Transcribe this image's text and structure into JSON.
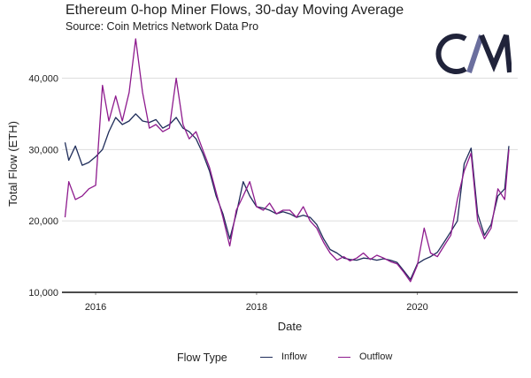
{
  "header": {
    "title": "Ethereum 0-hop Miner Flows, 30-day Moving Average",
    "subtitle": "Source: Coin Metrics Network Data Pro"
  },
  "logo": {
    "text": "CM",
    "color": "#20233a",
    "accent": "#6b6f9e"
  },
  "legend": {
    "title": "Flow Type",
    "items": [
      "Inflow",
      "Outflow"
    ]
  },
  "colors": {
    "inflow": "#1f2d5a",
    "outflow": "#8e1b8e",
    "grid": "#dddddd",
    "axis": "#111111"
  },
  "chart_data": {
    "type": "line",
    "xlabel": "Date",
    "ylabel": "Total Flow (ETH)",
    "xticks": [
      "2016",
      "2018",
      "2020"
    ],
    "yticks": [
      "10,000",
      "20,000",
      "30,000",
      "40,000"
    ],
    "xlim": [
      "2015-08-01",
      "2021-04-01"
    ],
    "ylim": [
      10000,
      46000
    ],
    "grid": true,
    "legend_position": "bottom",
    "series": [
      {
        "name": "Inflow",
        "color": "#1f2d5a",
        "points": [
          [
            "2015-08-15",
            31000
          ],
          [
            "2015-09-01",
            28500
          ],
          [
            "2015-10-01",
            30500
          ],
          [
            "2015-11-01",
            27800
          ],
          [
            "2015-12-01",
            28200
          ],
          [
            "2016-01-01",
            29000
          ],
          [
            "2016-02-01",
            30000
          ],
          [
            "2016-03-01",
            32500
          ],
          [
            "2016-04-01",
            34500
          ],
          [
            "2016-05-01",
            33500
          ],
          [
            "2016-06-01",
            34000
          ],
          [
            "2016-07-01",
            35000
          ],
          [
            "2016-08-01",
            34000
          ],
          [
            "2016-09-01",
            33800
          ],
          [
            "2016-10-01",
            34200
          ],
          [
            "2016-11-01",
            33000
          ],
          [
            "2016-12-01",
            33500
          ],
          [
            "2017-01-01",
            34500
          ],
          [
            "2017-02-01",
            33000
          ],
          [
            "2017-03-01",
            32500
          ],
          [
            "2017-04-01",
            31500
          ],
          [
            "2017-05-01",
            29500
          ],
          [
            "2017-06-01",
            27000
          ],
          [
            "2017-07-01",
            23500
          ],
          [
            "2017-08-01",
            21000
          ],
          [
            "2017-09-01",
            17500
          ],
          [
            "2017-10-01",
            21000
          ],
          [
            "2017-11-01",
            25500
          ],
          [
            "2017-12-01",
            23500
          ],
          [
            "2018-01-01",
            22000
          ],
          [
            "2018-02-01",
            21800
          ],
          [
            "2018-03-01",
            21500
          ],
          [
            "2018-04-01",
            21000
          ],
          [
            "2018-05-01",
            21300
          ],
          [
            "2018-06-01",
            21000
          ],
          [
            "2018-07-01",
            20500
          ],
          [
            "2018-08-01",
            20800
          ],
          [
            "2018-09-01",
            20500
          ],
          [
            "2018-10-01",
            19500
          ],
          [
            "2018-11-01",
            17500
          ],
          [
            "2018-12-01",
            16000
          ],
          [
            "2019-01-01",
            15500
          ],
          [
            "2019-02-01",
            14800
          ],
          [
            "2019-03-01",
            14600
          ],
          [
            "2019-04-01",
            14500
          ],
          [
            "2019-05-01",
            14800
          ],
          [
            "2019-06-01",
            14700
          ],
          [
            "2019-07-01",
            14500
          ],
          [
            "2019-08-01",
            14700
          ],
          [
            "2019-09-01",
            14500
          ],
          [
            "2019-10-01",
            14200
          ],
          [
            "2019-11-01",
            13000
          ],
          [
            "2019-12-01",
            11800
          ],
          [
            "2020-01-01",
            14000
          ],
          [
            "2020-02-01",
            14600
          ],
          [
            "2020-03-01",
            15000
          ],
          [
            "2020-04-01",
            15600
          ],
          [
            "2020-05-01",
            17000
          ],
          [
            "2020-06-01",
            18500
          ],
          [
            "2020-07-01",
            20000
          ],
          [
            "2020-08-01",
            28000
          ],
          [
            "2020-09-01",
            30200
          ],
          [
            "2020-10-01",
            21000
          ],
          [
            "2020-11-01",
            18000
          ],
          [
            "2020-12-01",
            19500
          ],
          [
            "2021-01-01",
            23500
          ],
          [
            "2021-02-01",
            24500
          ],
          [
            "2021-02-20",
            30500
          ]
        ]
      },
      {
        "name": "Outflow",
        "color": "#8e1b8e",
        "points": [
          [
            "2015-08-15",
            20500
          ],
          [
            "2015-09-01",
            25500
          ],
          [
            "2015-10-01",
            23000
          ],
          [
            "2015-11-01",
            23500
          ],
          [
            "2015-12-01",
            24500
          ],
          [
            "2016-01-01",
            25000
          ],
          [
            "2016-02-01",
            39000
          ],
          [
            "2016-03-01",
            34000
          ],
          [
            "2016-04-01",
            37500
          ],
          [
            "2016-05-01",
            34000
          ],
          [
            "2016-06-01",
            38000
          ],
          [
            "2016-07-01",
            45500
          ],
          [
            "2016-08-01",
            38000
          ],
          [
            "2016-09-01",
            33000
          ],
          [
            "2016-10-01",
            33500
          ],
          [
            "2016-11-01",
            32500
          ],
          [
            "2016-12-01",
            33000
          ],
          [
            "2017-01-01",
            40000
          ],
          [
            "2017-02-01",
            33500
          ],
          [
            "2017-03-01",
            31500
          ],
          [
            "2017-04-01",
            32500
          ],
          [
            "2017-05-01",
            30000
          ],
          [
            "2017-06-01",
            27500
          ],
          [
            "2017-07-01",
            24000
          ],
          [
            "2017-08-01",
            20500
          ],
          [
            "2017-09-01",
            16500
          ],
          [
            "2017-10-01",
            21500
          ],
          [
            "2017-11-01",
            23500
          ],
          [
            "2017-12-01",
            25500
          ],
          [
            "2018-01-01",
            22000
          ],
          [
            "2018-02-01",
            21500
          ],
          [
            "2018-03-01",
            22500
          ],
          [
            "2018-04-01",
            21000
          ],
          [
            "2018-05-01",
            21500
          ],
          [
            "2018-06-01",
            21500
          ],
          [
            "2018-07-01",
            20500
          ],
          [
            "2018-08-01",
            22000
          ],
          [
            "2018-09-01",
            20000
          ],
          [
            "2018-10-01",
            19000
          ],
          [
            "2018-11-01",
            17000
          ],
          [
            "2018-12-01",
            15500
          ],
          [
            "2019-01-01",
            14500
          ],
          [
            "2019-02-01",
            15000
          ],
          [
            "2019-03-01",
            14400
          ],
          [
            "2019-04-01",
            14800
          ],
          [
            "2019-05-01",
            15500
          ],
          [
            "2019-06-01",
            14600
          ],
          [
            "2019-07-01",
            15200
          ],
          [
            "2019-08-01",
            14800
          ],
          [
            "2019-09-01",
            14300
          ],
          [
            "2019-10-01",
            14000
          ],
          [
            "2019-11-01",
            12800
          ],
          [
            "2019-12-01",
            11500
          ],
          [
            "2020-01-01",
            13800
          ],
          [
            "2020-02-01",
            19000
          ],
          [
            "2020-03-01",
            15500
          ],
          [
            "2020-04-01",
            15000
          ],
          [
            "2020-05-01",
            16500
          ],
          [
            "2020-06-01",
            18000
          ],
          [
            "2020-07-01",
            23000
          ],
          [
            "2020-08-01",
            27000
          ],
          [
            "2020-09-01",
            29500
          ],
          [
            "2020-10-01",
            20000
          ],
          [
            "2020-11-01",
            17500
          ],
          [
            "2020-12-01",
            19000
          ],
          [
            "2021-01-01",
            24500
          ],
          [
            "2021-02-01",
            23000
          ],
          [
            "2021-02-20",
            30000
          ]
        ]
      }
    ]
  }
}
